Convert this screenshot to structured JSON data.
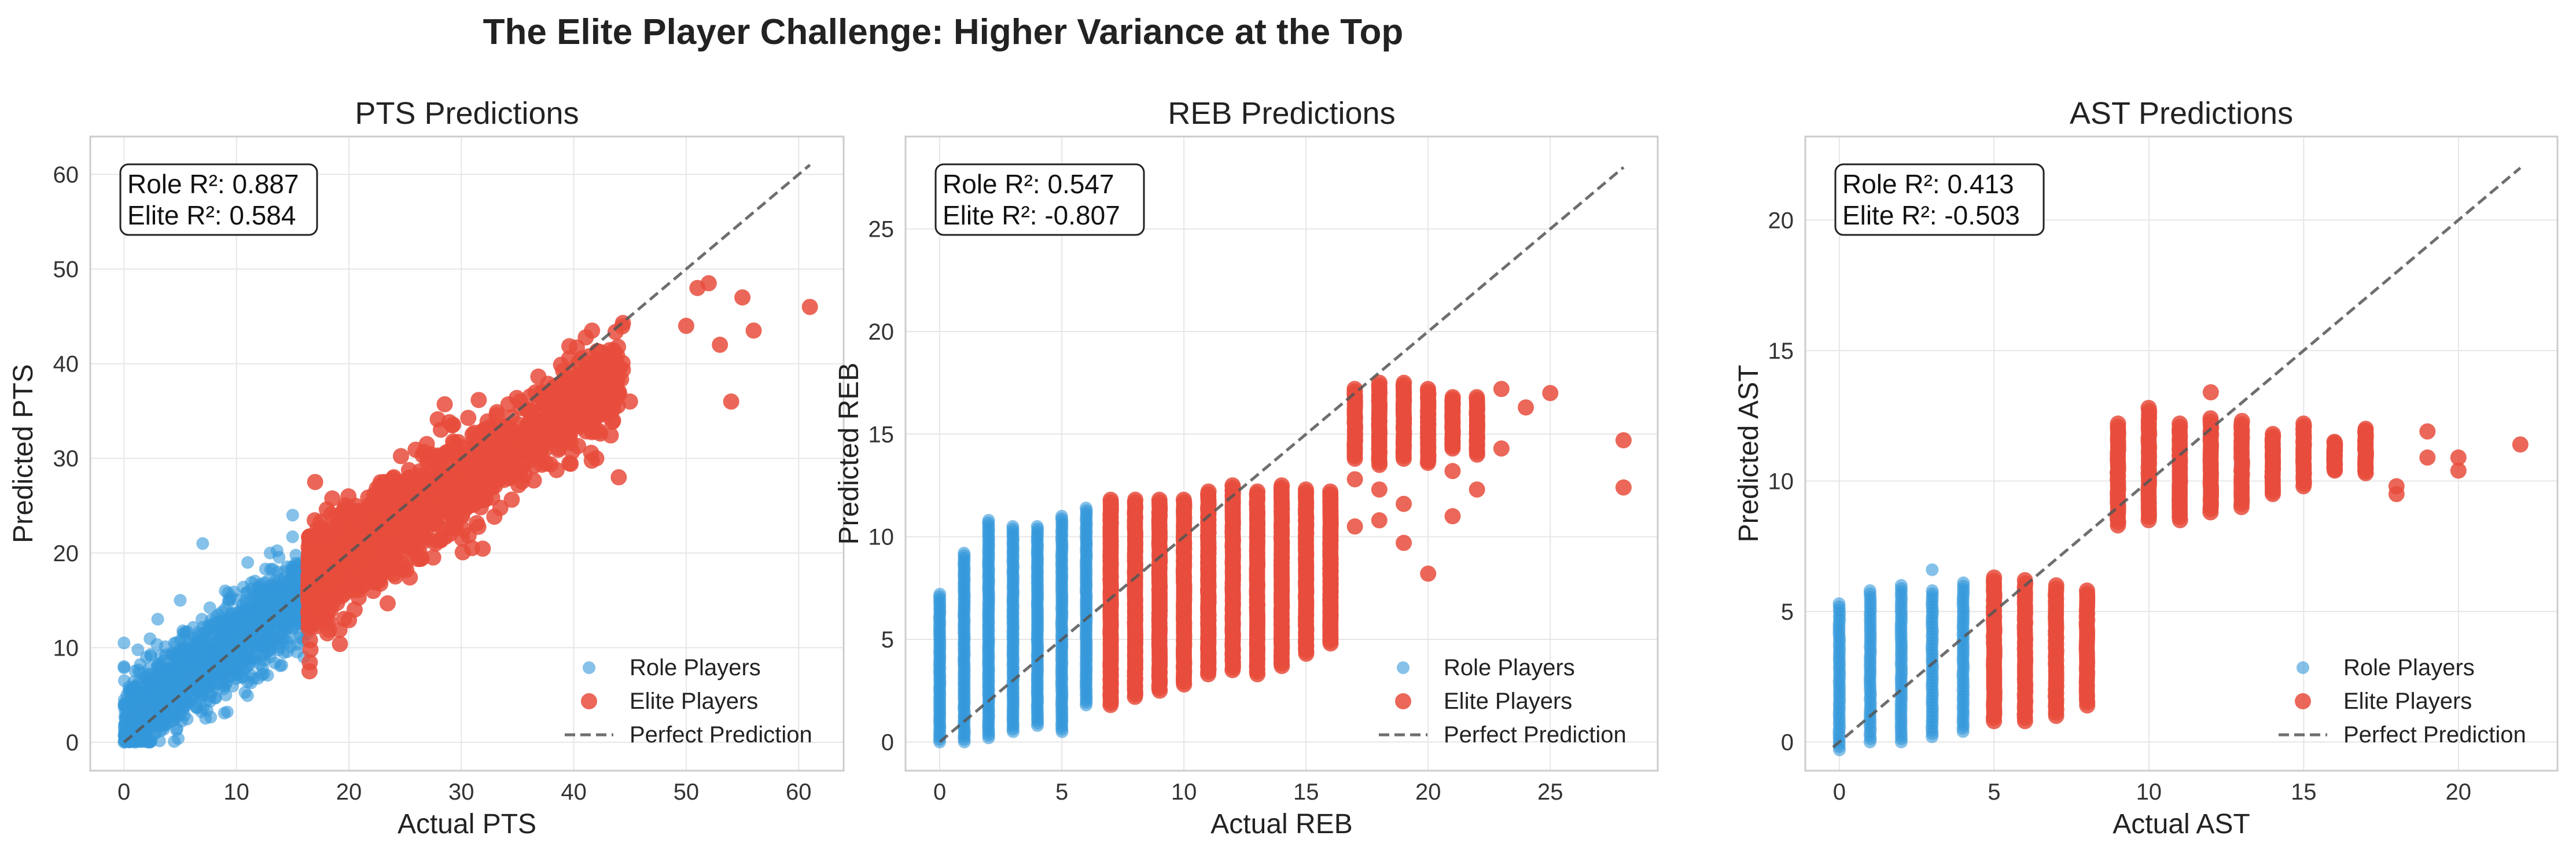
{
  "figure": {
    "title": "The Elite Player Challenge: Higher Variance at the Top"
  },
  "colors": {
    "role": "#3498db",
    "elite": "#e74c3c",
    "perfect_line": "#555555",
    "grid": "#e6e6e6",
    "frame": "#cccccc"
  },
  "chart_data": [
    {
      "type": "scatter",
      "title": "PTS Predictions",
      "xlabel": "Actual PTS",
      "ylabel": "Predicted PTS",
      "xlim": [
        -3,
        64
      ],
      "ylim": [
        -3,
        64
      ],
      "xticks": [
        0,
        10,
        20,
        30,
        40,
        50,
        60
      ],
      "yticks": [
        0,
        10,
        20,
        30,
        40,
        50,
        60
      ],
      "grid": true,
      "legend_position": "lower-right",
      "stats": {
        "role_r2": "Role R²: 0.887",
        "elite_r2": "Elite R²: 0.584"
      },
      "role_threshold": 16.4,
      "perfect_line": [
        0,
        61
      ],
      "series": [
        {
          "name": "Role Players",
          "values_description": "dense cloud from 0 to 16.4 actual",
          "sample_points": [
            [
              0,
              0
            ],
            [
              0,
              4
            ],
            [
              0,
              8
            ],
            [
              0,
              10.5
            ],
            [
              1,
              3
            ],
            [
              2,
              1
            ],
            [
              2,
              9
            ],
            [
              3,
              2
            ],
            [
              3,
              13
            ],
            [
              4,
              4
            ],
            [
              5,
              3
            ],
            [
              5,
              15
            ],
            [
              6,
              7
            ],
            [
              7,
              5
            ],
            [
              7,
              21
            ],
            [
              8,
              9
            ],
            [
              9,
              6
            ],
            [
              9,
              16
            ],
            [
              10,
              11
            ],
            [
              11,
              8
            ],
            [
              11,
              19
            ],
            [
              12,
              13
            ],
            [
              13,
              9
            ],
            [
              13,
              20
            ],
            [
              14,
              15
            ],
            [
              15,
              12
            ],
            [
              15,
              24
            ],
            [
              16,
              15
            ],
            [
              16,
              9
            ]
          ]
        },
        {
          "name": "Elite Players",
          "values_description": "cloud from 16.4 upward",
          "sample_points": [
            [
              16.5,
              7.5
            ],
            [
              17,
              27.5
            ],
            [
              18,
              13
            ],
            [
              20,
              21
            ],
            [
              22,
              25
            ],
            [
              24,
              28
            ],
            [
              26,
              20
            ],
            [
              28,
              30
            ],
            [
              30,
              24
            ],
            [
              32,
              33
            ],
            [
              34,
              29
            ],
            [
              36,
              35
            ],
            [
              38,
              32
            ],
            [
              40,
              37
            ],
            [
              42,
              30
            ],
            [
              44,
              28
            ],
            [
              45,
              36
            ],
            [
              50,
              44
            ],
            [
              51,
              48
            ],
            [
              52,
              48.5
            ],
            [
              53,
              42
            ],
            [
              54,
              36
            ],
            [
              55,
              47
            ],
            [
              56,
              43.5
            ],
            [
              61,
              46
            ]
          ]
        }
      ]
    },
    {
      "type": "scatter",
      "title": "REB Predictions",
      "xlabel": "Actual REB",
      "ylabel": "Predicted REB",
      "xlim": [
        -1.4,
        29.4
      ],
      "ylim": [
        -1.4,
        29.5
      ],
      "xticks": [
        0,
        5,
        10,
        15,
        20,
        25
      ],
      "yticks": [
        0,
        5,
        10,
        15,
        20,
        25
      ],
      "grid": true,
      "legend_position": "lower-right",
      "stats": {
        "role_r2": "Role R²: 0.547",
        "elite_r2": "Elite R²: -0.807"
      },
      "perfect_line": [
        0,
        28
      ],
      "series": [
        {
          "name": "Role Players",
          "columns": [
            {
              "x": 0,
              "ymin": 0,
              "ymax": 7.2
            },
            {
              "x": 1,
              "ymin": 0,
              "ymax": 9.2
            },
            {
              "x": 2,
              "ymin": 0.2,
              "ymax": 10.8
            },
            {
              "x": 3,
              "ymin": 0.5,
              "ymax": 10.5
            },
            {
              "x": 4,
              "ymin": 0.8,
              "ymax": 10.5
            },
            {
              "x": 5,
              "ymin": 0.5,
              "ymax": 11
            },
            {
              "x": 6,
              "ymin": 1.8,
              "ymax": 11.4
            }
          ]
        },
        {
          "name": "Elite Players",
          "columns": [
            {
              "x": 7,
              "ymin": 1.8,
              "ymax": 11.8
            },
            {
              "x": 8,
              "ymin": 2.2,
              "ymax": 11.8
            },
            {
              "x": 9,
              "ymin": 2.5,
              "ymax": 11.8
            },
            {
              "x": 10,
              "ymin": 2.8,
              "ymax": 11.8
            },
            {
              "x": 11,
              "ymin": 3.3,
              "ymax": 12.2
            },
            {
              "x": 12,
              "ymin": 3.5,
              "ymax": 12.5
            },
            {
              "x": 13,
              "ymin": 3.3,
              "ymax": 12.2
            },
            {
              "x": 14,
              "ymin": 3.7,
              "ymax": 12.5
            },
            {
              "x": 15,
              "ymin": 4.3,
              "ymax": 12.3
            },
            {
              "x": 16,
              "ymin": 4.8,
              "ymax": 12.2
            },
            {
              "x": 17,
              "ymin": 13.8,
              "ymax": 17.2
            },
            {
              "x": 18,
              "ymin": 13.5,
              "ymax": 17.5
            },
            {
              "x": 19,
              "ymin": 13.8,
              "ymax": 17.5
            },
            {
              "x": 20,
              "ymin": 13.6,
              "ymax": 17.2
            },
            {
              "x": 21,
              "ymin": 14.3,
              "ymax": 16.8
            },
            {
              "x": 22,
              "ymin": 14,
              "ymax": 16.8
            }
          ],
          "outliers": [
            [
              17,
              10.5
            ],
            [
              17,
              12.8
            ],
            [
              18,
              10.8
            ],
            [
              18,
              12.3
            ],
            [
              19,
              11.6
            ],
            [
              19,
              9.7
            ],
            [
              20,
              8.2
            ],
            [
              20,
              13.7
            ],
            [
              21,
              11
            ],
            [
              21,
              13.2
            ],
            [
              22,
              12.3
            ],
            [
              22,
              15.4
            ],
            [
              23,
              14.3
            ],
            [
              23,
              17.2
            ],
            [
              24,
              16.3
            ],
            [
              25,
              17
            ],
            [
              28,
              12.4
            ],
            [
              28,
              14.7
            ]
          ]
        }
      ]
    },
    {
      "type": "scatter",
      "title": "AST Predictions",
      "xlabel": "Actual AST",
      "ylabel": "Predicted AST",
      "xlim": [
        -1.1,
        23.2
      ],
      "ylim": [
        -1.1,
        23.2
      ],
      "xticks": [
        0,
        5,
        10,
        15,
        20
      ],
      "yticks": [
        0,
        5,
        10,
        15,
        20
      ],
      "grid": true,
      "legend_position": "lower-right",
      "stats": {
        "role_r2": "Role R²: 0.413",
        "elite_r2": "Elite R²: -0.503"
      },
      "perfect_line": [
        -0.2,
        22
      ],
      "series": [
        {
          "name": "Role Players",
          "columns": [
            {
              "x": 0,
              "ymin": -0.3,
              "ymax": 5.3
            },
            {
              "x": 1,
              "ymin": 0,
              "ymax": 5.8
            },
            {
              "x": 2,
              "ymin": 0,
              "ymax": 6
            },
            {
              "x": 3,
              "ymin": 0.2,
              "ymax": 5.8
            },
            {
              "x": 4,
              "ymin": 0.4,
              "ymax": 6.1
            }
          ],
          "outliers": [
            [
              3,
              6.6
            ]
          ]
        },
        {
          "name": "Elite Players",
          "columns": [
            {
              "x": 5,
              "ymin": 0.8,
              "ymax": 6.3
            },
            {
              "x": 6,
              "ymin": 0.8,
              "ymax": 6.2
            },
            {
              "x": 7,
              "ymin": 1.0,
              "ymax": 6
            },
            {
              "x": 8,
              "ymin": 1.4,
              "ymax": 5.8
            },
            {
              "x": 9,
              "ymin": 8.3,
              "ymax": 12.2
            },
            {
              "x": 10,
              "ymin": 8.5,
              "ymax": 12.8
            },
            {
              "x": 11,
              "ymin": 8.5,
              "ymax": 12.2
            },
            {
              "x": 12,
              "ymin": 8.8,
              "ymax": 12.4
            },
            {
              "x": 13,
              "ymin": 9,
              "ymax": 12.3
            },
            {
              "x": 14,
              "ymin": 9.5,
              "ymax": 11.8
            },
            {
              "x": 15,
              "ymin": 9.8,
              "ymax": 12.2
            },
            {
              "x": 16,
              "ymin": 10.4,
              "ymax": 11.5
            },
            {
              "x": 17,
              "ymin": 10.3,
              "ymax": 12
            }
          ],
          "outliers": [
            [
              12,
              13.4
            ],
            [
              18,
              9.5
            ],
            [
              18,
              9.8
            ],
            [
              19,
              10.9
            ],
            [
              19,
              11.9
            ],
            [
              20,
              10.4
            ],
            [
              20,
              10.9
            ],
            [
              22,
              11.4
            ]
          ]
        }
      ]
    }
  ],
  "legend": {
    "role": "Role Players",
    "elite": "Elite Players",
    "perfect": "Perfect Prediction"
  }
}
